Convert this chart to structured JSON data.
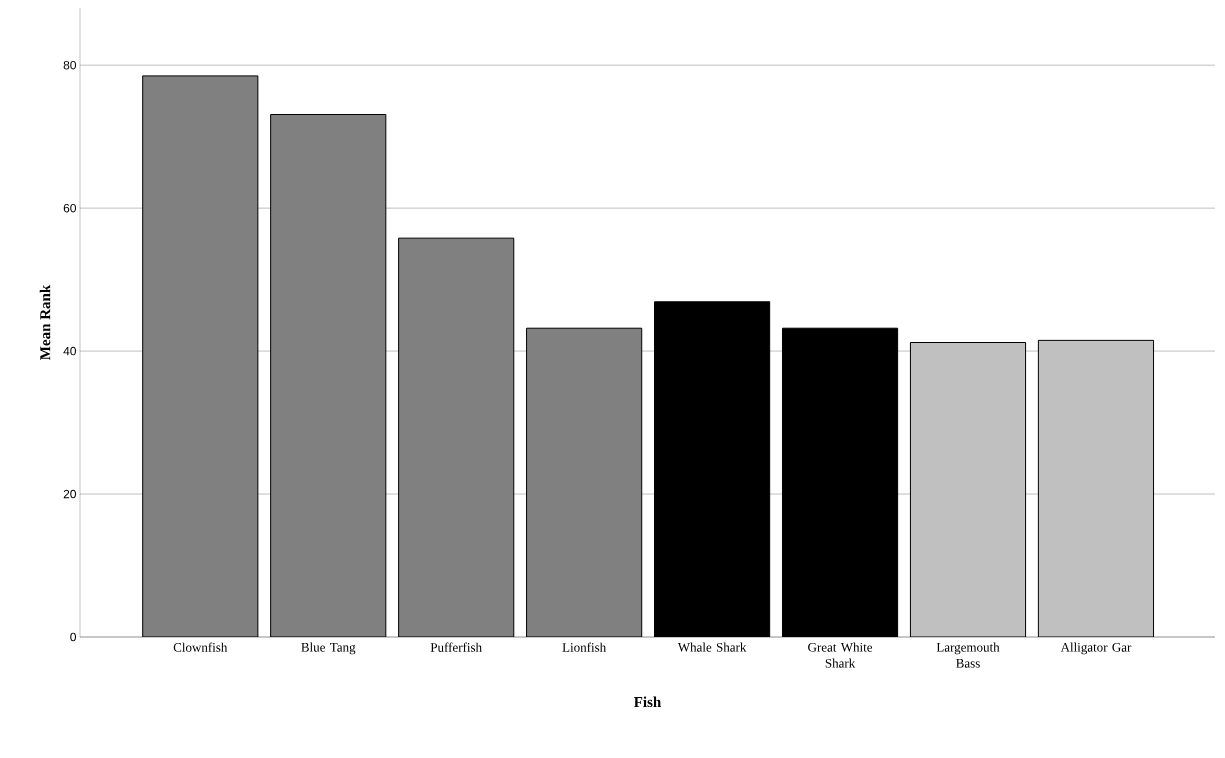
{
  "chart_data": {
    "type": "bar",
    "xlabel": "Fish",
    "ylabel": "Mean Rank",
    "categories": [
      "Clownfish",
      "Blue Tang",
      "Pufferfish",
      "Lionfish",
      "Whale Shark",
      "Great White Shark",
      "Largemouth Bass",
      "Alligator Gar"
    ],
    "values": [
      78.5,
      73.1,
      55.8,
      43.2,
      46.9,
      43.2,
      41.2,
      41.5
    ],
    "colors": [
      "#808080",
      "#808080",
      "#808080",
      "#808080",
      "#000000",
      "#000000",
      "#c0c0c0",
      "#c0c0c0"
    ],
    "ylim": [
      0,
      88
    ],
    "yticks": [
      0,
      20,
      40,
      60,
      80
    ],
    "grid": "y"
  }
}
